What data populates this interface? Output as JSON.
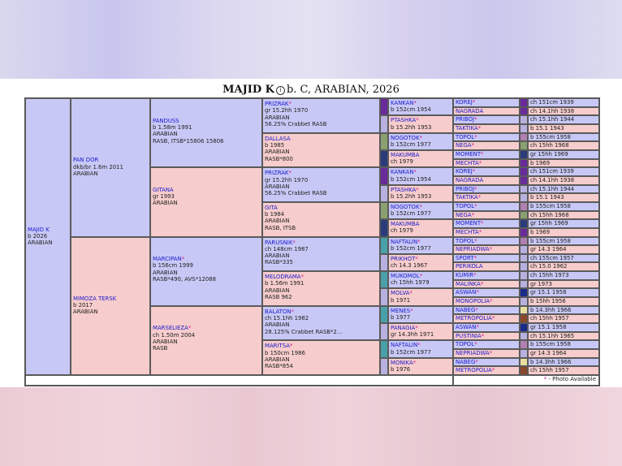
{
  "title": {
    "name": "MAJID K",
    "rest": "b. C, ARABIAN, 2026"
  },
  "footer": {
    "note": "- Photo Available"
  },
  "colors": {
    "male": "#c8c8f6",
    "female": "#f6cccc",
    "link": "#1a1acc",
    "photo_asterisk": "#d0208a"
  },
  "subject": {
    "name": "MAJID K",
    "lines": [
      "b 2026",
      "ARABIAN"
    ]
  },
  "gen1": [
    {
      "name": "PAN DOR",
      "lines": [
        "dkb/br 1.6m 2011",
        "ARABIAN"
      ]
    },
    {
      "name": "MIMOZA TERSK",
      "lines": [
        "b 2017",
        "ARABIAN"
      ]
    }
  ],
  "gen2": [
    {
      "name": "PANDUSS",
      "lines": [
        "b 1.58m 1991",
        "ARABIAN",
        "RASB, ITSB*15806 15806"
      ]
    },
    {
      "name": "GITANA",
      "lines": [
        "gr 1993",
        "ARABIAN"
      ]
    },
    {
      "name": "MARCIPAN",
      "photo": true,
      "lines": [
        "b 156cm 1999",
        "ARABIAN",
        "RASB*490, AVS*12088"
      ]
    },
    {
      "name": "MARSELIEZA",
      "photo": true,
      "lines": [
        "ch 1.50m 2004",
        "ARABIAN",
        "RASB"
      ]
    }
  ],
  "gen3": [
    {
      "name": "PRIZRAK",
      "photo": true,
      "lines": [
        "gr 15.2hh 1970",
        "ARABIAN",
        "56.25% Crabbet RASB"
      ]
    },
    {
      "name": "DALLASA",
      "lines": [
        "b 1985",
        "ARABIAN",
        "RASB*800"
      ]
    },
    {
      "name": "PRIZRAK",
      "photo": true,
      "lines": [
        "gr 15.2hh 1970",
        "ARABIAN",
        "56.25% Crabbet RASB"
      ]
    },
    {
      "name": "GITA",
      "lines": [
        "b 1984",
        "ARABIAN",
        "RASB, ITSB"
      ]
    },
    {
      "name": "PARUSNIK",
      "photo": true,
      "lines": [
        "ch 148cm 1987",
        "ARABIAN",
        "RASB*335"
      ]
    },
    {
      "name": "MELODRAMA",
      "photo": true,
      "lines": [
        "b 1.56m 1991",
        "ARABIAN",
        "RASB 962"
      ]
    },
    {
      "name": "BALATON",
      "photo": true,
      "lines": [
        "ch 15.1hh 1982",
        "ARABIAN",
        "28.125% Crabbet RASB*2..."
      ]
    },
    {
      "name": "MARITSA",
      "photo": true,
      "lines": [
        "b 150cm 1986",
        "ARABIAN",
        "RASB*854"
      ]
    }
  ],
  "gen4": [
    {
      "name": "KANKAN",
      "photo": true,
      "line": "b 152cm 1954"
    },
    {
      "name": "PTASHKA",
      "photo": true,
      "line": "b 15.2hh 1953"
    },
    {
      "name": "NOGOTOK",
      "photo": true,
      "line": "b 152cm 1977"
    },
    {
      "name": "MAKUMBA",
      "line": "ch 1979"
    },
    {
      "name": "KANKAN",
      "photo": true,
      "line": "b 152cm 1954"
    },
    {
      "name": "PTASHKA",
      "photo": true,
      "line": "b 15.2hh 1953"
    },
    {
      "name": "NOGOTOK",
      "photo": true,
      "line": "b 152cm 1977"
    },
    {
      "name": "MAKUMBA",
      "line": "ch 1979"
    },
    {
      "name": "NAFTALIN",
      "photo": true,
      "line": "b 152cm 1977"
    },
    {
      "name": "PRIKHOT",
      "photo": true,
      "line": "ch 14.3 1967"
    },
    {
      "name": "MUKOMOL",
      "photo": true,
      "line": "ch 15hh 1979"
    },
    {
      "name": "MOLVA",
      "photo": true,
      "line": "b 1971"
    },
    {
      "name": "MENES",
      "photo": true,
      "line": "b 1977"
    },
    {
      "name": "PANAGIA",
      "photo": true,
      "line": "gr 14.3hh 1971"
    },
    {
      "name": "NAFTALIN",
      "photo": true,
      "line": "b 152cm 1977"
    },
    {
      "name": "MONIKA",
      "photo": true,
      "line": "b 1976"
    }
  ],
  "gen5": [
    {
      "name": "KOREJ",
      "photo": true,
      "line": "ch 151cm 1939"
    },
    {
      "name": "NAGRADA",
      "line": "ch 14.1hh 1938"
    },
    {
      "name": "PRIBOJ",
      "photo": true,
      "line": "ch 15.1hh 1944"
    },
    {
      "name": "TAKTIKA",
      "photo": true,
      "line": "b 15.1 1943"
    },
    {
      "name": "TOPOL",
      "photo": true,
      "line": "b 155cm 1958"
    },
    {
      "name": "NEGA",
      "photo": true,
      "line": "ch 15hh 1968"
    },
    {
      "name": "MOMENT",
      "photo": true,
      "line": "gr 15hh 1969"
    },
    {
      "name": "MECHTA",
      "photo": true,
      "line": "b 1969"
    },
    {
      "name": "KOREJ",
      "photo": true,
      "line": "ch 151cm 1939"
    },
    {
      "name": "NAGRADA",
      "line": "ch 14.1hh 1938"
    },
    {
      "name": "PRIBOJ",
      "photo": true,
      "line": "ch 15.1hh 1944"
    },
    {
      "name": "TAKTIKA",
      "photo": true,
      "line": "b 15.1 1943"
    },
    {
      "name": "TOPOL",
      "photo": true,
      "line": "b 155cm 1958"
    },
    {
      "name": "NEGA",
      "photo": true,
      "line": "ch 15hh 1968"
    },
    {
      "name": "MOMENT",
      "photo": true,
      "line": "gr 15hh 1969"
    },
    {
      "name": "MECHTA",
      "photo": true,
      "line": "b 1969"
    },
    {
      "name": "TOPOL",
      "photo": true,
      "line": "b 155cm 1958"
    },
    {
      "name": "NEPRIADWA",
      "photo": true,
      "line": "gr 14.3 1964"
    },
    {
      "name": "SPORT",
      "photo": true,
      "line": "ch 155cm 1957"
    },
    {
      "name": "PERIKOLA",
      "line": "ch 15.0 1962"
    },
    {
      "name": "KUMIR",
      "photo": true,
      "line": "ch 15hh 1973"
    },
    {
      "name": "MALINKA",
      "photo": true,
      "line": "gr 1973"
    },
    {
      "name": "ASWAN",
      "photo": true,
      "line": "gr 15.1 1958"
    },
    {
      "name": "MONOPOLIA",
      "photo": true,
      "line": "b 15hh 1956"
    },
    {
      "name": "NABEG",
      "photo": true,
      "line": "b 14.3hh 1966"
    },
    {
      "name": "METROPOLIA",
      "photo": true,
      "line": "ch 15hh 1957"
    },
    {
      "name": "ASWAN",
      "photo": true,
      "line": "gr 15.1 1958"
    },
    {
      "name": "PUSTINIA",
      "photo": true,
      "line": "ch 15.1hh 1965"
    },
    {
      "name": "TOPOL",
      "photo": true,
      "line": "b 155cm 1958"
    },
    {
      "name": "NEPRIADWA",
      "photo": true,
      "line": "gr 14.3 1964"
    },
    {
      "name": "NABEG",
      "photo": true,
      "line": "b 14.3hh 1966"
    },
    {
      "name": "METROPOLIA",
      "photo": true,
      "line": "ch 15hh 1957"
    }
  ],
  "gen4_swatches": [
    "#6a2a9a",
    "#b8b0de",
    "#8aa070",
    "#2a3a7a",
    "#6a2a9a",
    "#b8b0de",
    "#8aa070",
    "#2a3a7a",
    "#4aa0a8",
    "#b8b0de",
    "#4aa0a8",
    "#b8b0de",
    "#4aa0a8",
    "#b8b0de",
    "#4aa0a8",
    "#b8b0de"
  ],
  "gen5_swatches": [
    "#6a2a9a",
    "#6a2a9a",
    "#b8b0de",
    "#b8b0de",
    "#b080b0",
    "#8aa070",
    "#2a3a7a",
    "#6a2a9a",
    "#6a2a9a",
    "#6a2a9a",
    "#b8b0de",
    "#b8b0de",
    "#b080b0",
    "#8aa070",
    "#2a3a7a",
    "#6a2a9a",
    "#b080b0",
    "#b8b0de",
    "#b8b0de",
    "#b8b0de",
    "#b8b0de",
    "#b8b0de",
    "#1a2a8a",
    "#b8b0de",
    "#e8e0a0",
    "#8a4a2a",
    "#1a2a8a",
    "#b8b0de",
    "#b080b0",
    "#b8b0de",
    "#e8e0a0",
    "#8a4a2a"
  ]
}
